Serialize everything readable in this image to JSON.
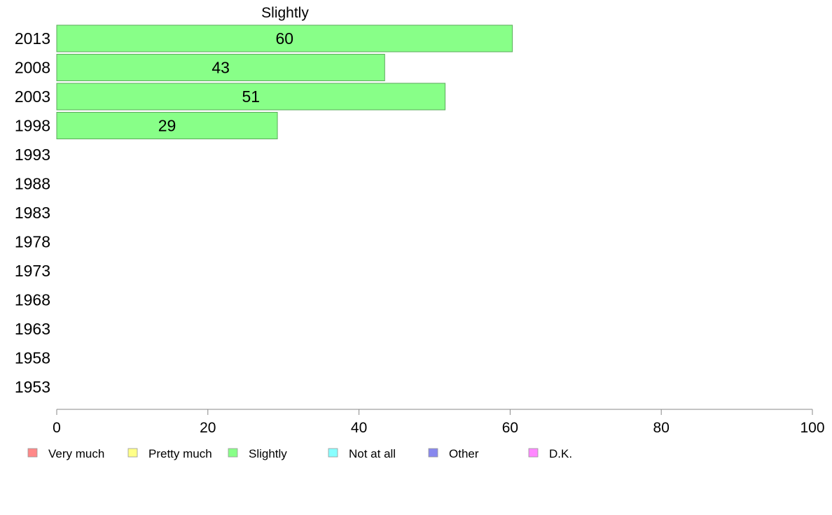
{
  "chart_data": {
    "type": "bar",
    "orientation": "horizontal",
    "title": "Slightly",
    "categories": [
      "2013",
      "2008",
      "2003",
      "1998",
      "1993",
      "1988",
      "1983",
      "1978",
      "1973",
      "1968",
      "1963",
      "1958",
      "1953"
    ],
    "series": [
      {
        "name": "Slightly",
        "color": "#88ff88",
        "values": [
          60.3,
          43.4,
          51.4,
          29.2,
          null,
          null,
          null,
          null,
          null,
          null,
          null,
          null,
          null
        ],
        "labels": [
          "60",
          "43",
          "51",
          "29",
          "",
          "",
          "",
          "",
          "",
          "",
          "",
          "",
          ""
        ]
      }
    ],
    "xlim": [
      0,
      100
    ],
    "xticks": [
      "0",
      "20",
      "40",
      "60",
      "80",
      "100"
    ],
    "grid": false,
    "legend": {
      "placement": "bottom",
      "items": [
        {
          "label": "Very much",
          "color": "#ff8888"
        },
        {
          "label": "Pretty much",
          "color": "#ffff88"
        },
        {
          "label": "Slightly",
          "color": "#88ff88"
        },
        {
          "label": "Not at all",
          "color": "#88ffff"
        },
        {
          "label": "Other",
          "color": "#8888ee"
        },
        {
          "label": "D.K.",
          "color": "#ff88ff"
        }
      ]
    }
  }
}
